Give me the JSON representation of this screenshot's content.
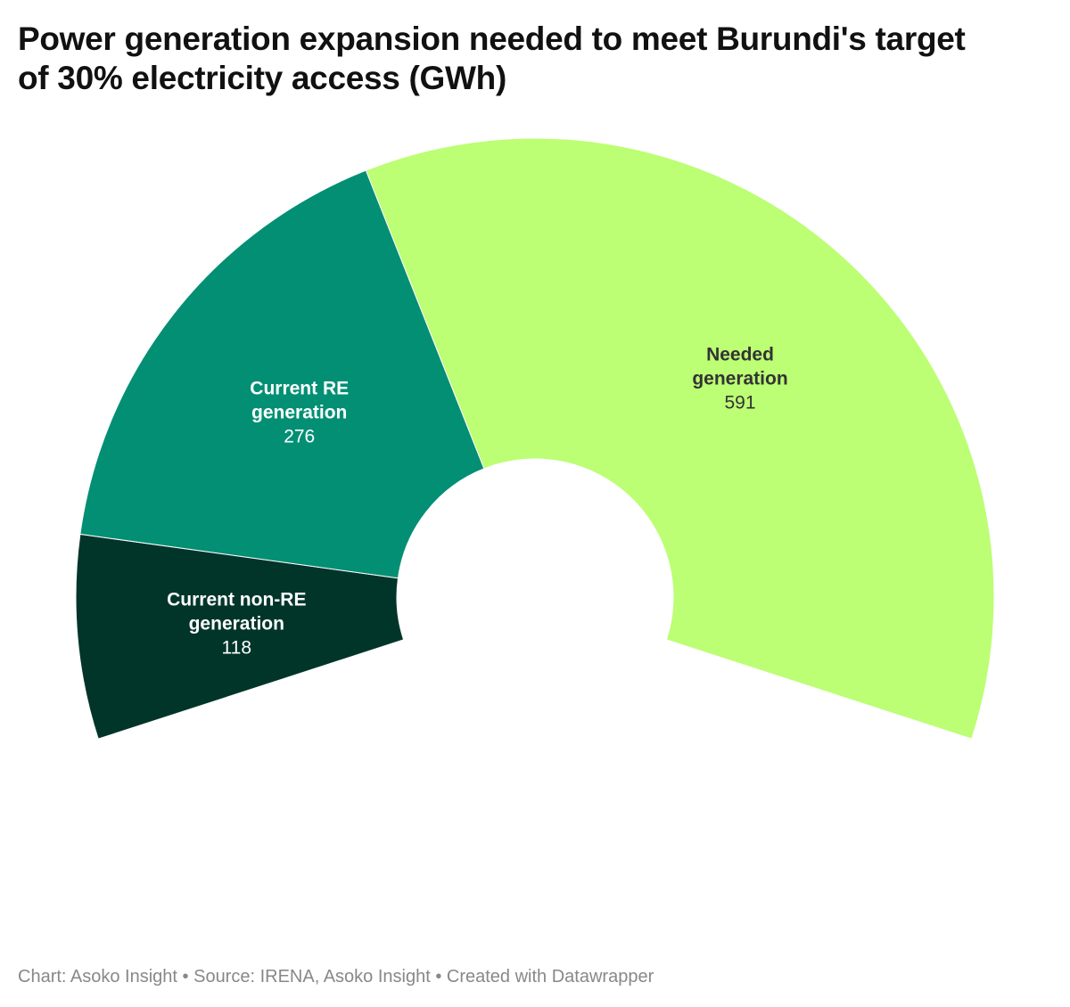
{
  "chart_data": {
    "type": "pie",
    "title": "Power generation expansion needed to meet Burundi's target of 30% electricity access (GWh)",
    "categories": [
      "Current non-RE generation",
      "Current RE generation",
      "Needed generation"
    ],
    "values": [
      118,
      276,
      591
    ],
    "colors": [
      "#02352a",
      "#028f74",
      "#bcfe74"
    ],
    "footer": "Chart: Asoko Insight • Source: IRENA, Asoko Insight • Created with Datawrapper"
  }
}
